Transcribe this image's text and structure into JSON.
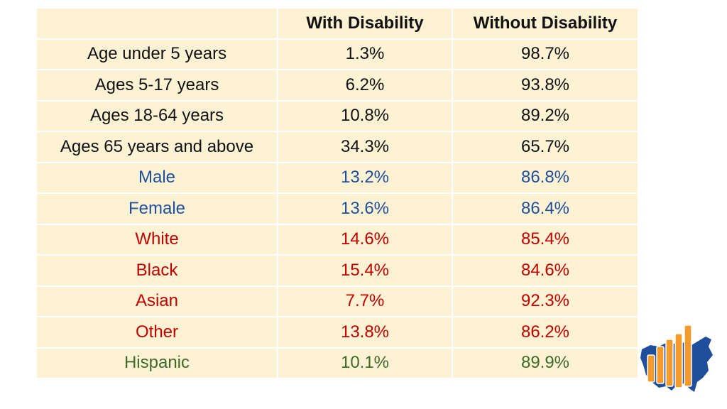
{
  "table": {
    "headers": [
      "",
      "With Disability",
      "Without Disability"
    ],
    "rows": [
      {
        "label": "Age under 5 years",
        "with": "1.3%",
        "without": "98.7%",
        "color": "#111111"
      },
      {
        "label": "Ages 5-17 years",
        "with": "6.2%",
        "without": "93.8%",
        "color": "#111111"
      },
      {
        "label": "Ages 18-64 years",
        "with": "10.8%",
        "without": "89.2%",
        "color": "#111111"
      },
      {
        "label": "Ages 65 years and above",
        "with": "34.3%",
        "without": "65.7%",
        "color": "#111111"
      },
      {
        "label": "Male",
        "with": "13.2%",
        "without": "86.8%",
        "color": "#1f4f9c"
      },
      {
        "label": "Female",
        "with": "13.6%",
        "without": "86.4%",
        "color": "#1f4f9c"
      },
      {
        "label": "White",
        "with": "14.6%",
        "without": "85.4%",
        "color": "#c00000"
      },
      {
        "label": "Black",
        "with": "15.4%",
        "without": "84.6%",
        "color": "#c00000"
      },
      {
        "label": "Asian",
        "with": "7.7%",
        "without": "92.3%",
        "color": "#c00000"
      },
      {
        "label": "Other",
        "with": "13.8%",
        "without": "86.2%",
        "color": "#c00000"
      },
      {
        "label": "Hispanic",
        "with": "10.1%",
        "without": "89.9%",
        "color": "#3f6a2a"
      }
    ]
  },
  "colors": {
    "cell_background": "#fdf3d4",
    "logo_map": "#1f4f9c",
    "logo_bars": "#f39a2b"
  },
  "logo": {
    "icon": "us-map-bar-chart-logo"
  }
}
